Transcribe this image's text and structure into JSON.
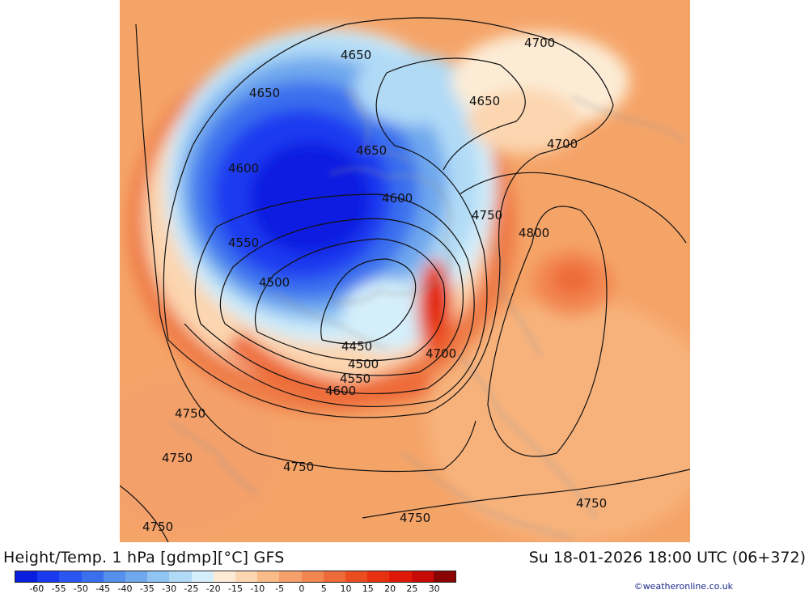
{
  "header": {
    "title": "Height/Temp. 1 hPa [gdmp][°C] GFS",
    "valid_time": "Su 18-01-2026 18:00 UTC (06+372)"
  },
  "credit": "©weatheronline.co.uk",
  "legend": {
    "colors": [
      "#0a1ee0",
      "#1a3af0",
      "#2a55f0",
      "#3a70ee",
      "#5590ec",
      "#70a8ee",
      "#90c4f2",
      "#b0daf6",
      "#d4eefa",
      "#fcecd6",
      "#fcd6b0",
      "#f9bb88",
      "#f5a06a",
      "#f28650",
      "#ee6a38",
      "#ea4e20",
      "#e63210",
      "#e01808",
      "#c80a06",
      "#8a0404"
    ],
    "ticks": [
      "-60",
      "-55",
      "-50",
      "-45",
      "-40",
      "-35",
      "-30",
      "-25",
      "-20",
      "-15",
      "-10",
      "-5",
      "0",
      "5",
      "10",
      "15",
      "20",
      "25",
      "30"
    ]
  },
  "map": {
    "contour_labels": [
      "4700",
      "4650",
      "4650",
      "4650",
      "4650",
      "4700",
      "4600",
      "4600",
      "4750",
      "4800",
      "4550",
      "4500",
      "4450",
      "4500",
      "4550",
      "4600",
      "4700",
      "4750",
      "4750",
      "4750",
      "4750",
      "4750",
      "4750"
    ]
  }
}
